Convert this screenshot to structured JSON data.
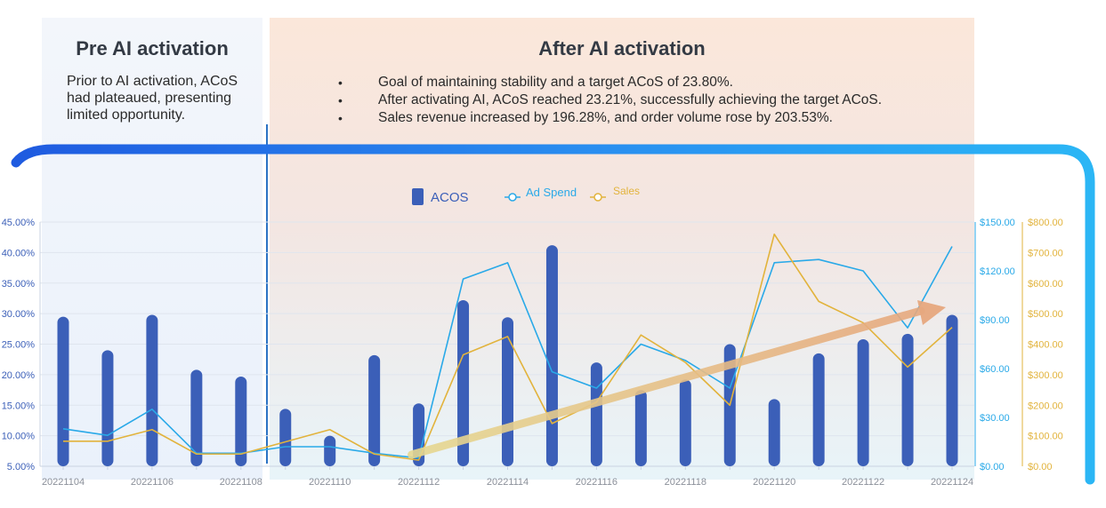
{
  "pre_panel": {
    "title": "Pre AI activation",
    "body": "Prior to AI activation, ACoS had plateaued, presenting limited opportunity."
  },
  "post_panel": {
    "title": "After AI activation",
    "bullets": [
      "Goal of maintaining stability and a target ACoS of 23.80%.",
      "After activating AI, ACoS reached 23.21%, successfully achieving the target ACoS.",
      "Sales revenue increased by 196.28%, and order volume rose by 203.53%."
    ]
  },
  "colors": {
    "bar": "#3b5fb8",
    "ad_spend": "#29a9e8",
    "sales": "#e2b33c",
    "trend_arrow": "#e6a87e",
    "left_axis": "#3b5fb8",
    "mid_axis": "#29a9e8",
    "right_axis": "#e2b33c"
  },
  "chart_data": {
    "type": "bar+line",
    "legend": [
      "ACOS",
      "Ad Spend",
      "Sales"
    ],
    "legend_position": "top-center",
    "x": [
      "20221104",
      "20221105",
      "20221106",
      "20221107",
      "20221108",
      "20221109",
      "20221110",
      "20221111",
      "20221112",
      "20221113",
      "20221114",
      "20221115",
      "20221116",
      "20221117",
      "20221118",
      "20221119",
      "20221120",
      "20221121",
      "20221122",
      "20221123",
      "20221124"
    ],
    "x_tick_labels": [
      "20221104",
      "20221106",
      "20221108",
      "20221110",
      "20221112",
      "20221114",
      "20221116",
      "20221118",
      "20221120",
      "20221122",
      "20221124"
    ],
    "series": [
      {
        "name": "ACOS",
        "type": "bar",
        "axis": "left",
        "unit": "%",
        "values": [
          29.5,
          24.0,
          29.8,
          20.8,
          19.7,
          14.4,
          10.0,
          23.2,
          15.3,
          32.2,
          29.4,
          41.2,
          22.0,
          17.5,
          19.2,
          25.0,
          16.0,
          23.5,
          25.8,
          26.7,
          29.8
        ]
      },
      {
        "name": "Ad Spend",
        "type": "line",
        "axis": "mid",
        "unit": "$",
        "values": [
          23,
          19,
          35,
          8,
          8,
          12,
          12,
          8,
          5,
          115,
          125,
          58,
          48,
          75,
          65,
          48,
          125,
          127,
          120,
          85,
          135
        ]
      },
      {
        "name": "Sales",
        "type": "line",
        "axis": "right",
        "unit": "$",
        "values": [
          82,
          82,
          120,
          40,
          40,
          80,
          120,
          40,
          20,
          365,
          425,
          140,
          210,
          430,
          340,
          200,
          760,
          540,
          470,
          325,
          455
        ]
      }
    ],
    "left_axis": {
      "min": 5,
      "max": 45,
      "ticks": [
        "5.00%",
        "10.00%",
        "15.00%",
        "20.00%",
        "25.00%",
        "30.00%",
        "35.00%",
        "40.00%",
        "45.00%"
      ]
    },
    "mid_axis": {
      "min": 0,
      "max": 150,
      "ticks": [
        "$0.00",
        "$30.00",
        "$60.00",
        "$90.00",
        "$120.00",
        "$150.00"
      ]
    },
    "right_axis": {
      "min": 0,
      "max": 800,
      "ticks": [
        "$0.00",
        "$100.00",
        "$200.00",
        "$300.00",
        "$400.00",
        "$500.00",
        "$600.00",
        "$700.00",
        "$800.00"
      ]
    },
    "grid": true,
    "annotation": "trend-arrow from 20221112 to 20221124"
  }
}
